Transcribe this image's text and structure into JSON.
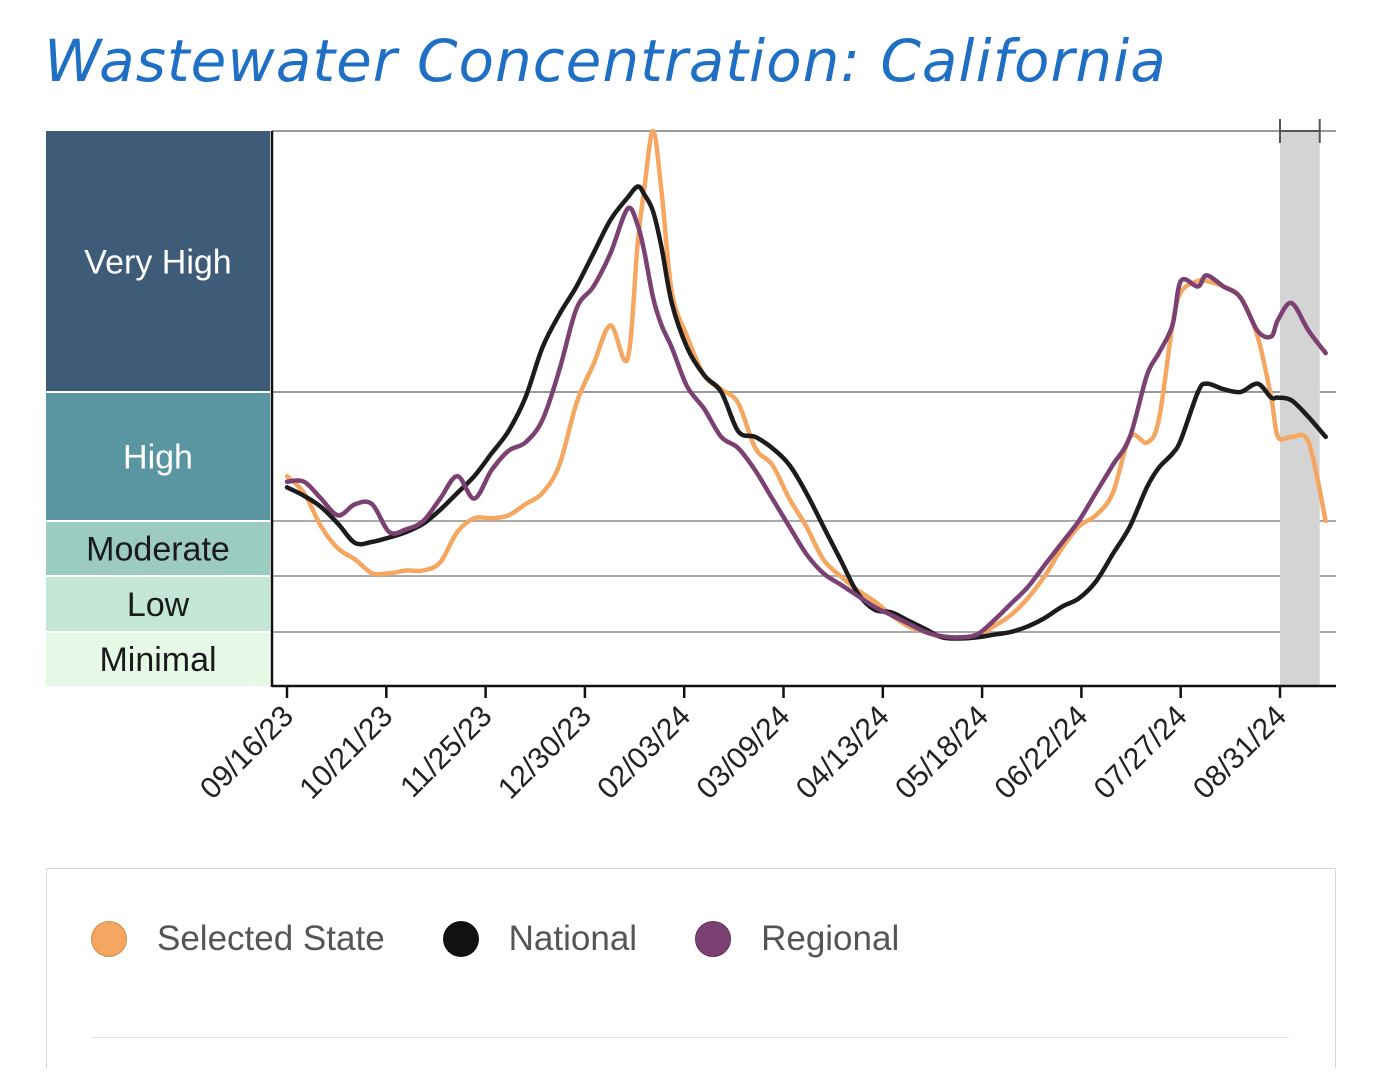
{
  "title": "Wastewater Concentration: California",
  "chart_data": {
    "type": "line",
    "title": "Wastewater Concentration: California",
    "xlabel": "",
    "ylabel": "",
    "ylim": [
      0,
      10
    ],
    "y_unit": "level index (0 = bottom of Minimal, 10 = top of Very High)",
    "x_ticks": [
      "09/16/23",
      "10/21/23",
      "11/25/23",
      "12/30/23",
      "02/03/24",
      "03/09/24",
      "04/13/24",
      "05/18/24",
      "06/22/24",
      "07/27/24",
      "08/31/24"
    ],
    "x_range_weeks": [
      0,
      52.4
    ],
    "levels": [
      {
        "name": "Very High",
        "from": 5.3,
        "to": 10,
        "color": "#3e5b78",
        "text_color": "#ffffff"
      },
      {
        "name": "High",
        "from": 3.0,
        "to": 5.3,
        "color": "#5a95a2",
        "text_color": "#ffffff"
      },
      {
        "name": "Moderate",
        "from": 2.0,
        "to": 3.0,
        "color": "#9ccbc2",
        "text_color": "#1a1a1a"
      },
      {
        "name": "Low",
        "from": 1.0,
        "to": 2.0,
        "color": "#c3e6d6",
        "text_color": "#1a1a1a"
      },
      {
        "name": "Minimal",
        "from": 0,
        "to": 1.0,
        "color": "#e6f8e6",
        "text_color": "#1a1a1a"
      }
    ],
    "provisional_range_weeks": [
      50,
      52
    ],
    "series": [
      {
        "name": "Selected State",
        "color": "#f5a761",
        "points": [
          [
            0,
            3.8
          ],
          [
            1,
            3.5
          ],
          [
            2,
            2.9
          ],
          [
            3,
            2.5
          ],
          [
            4,
            2.3
          ],
          [
            5,
            2.05
          ],
          [
            6,
            2.05
          ],
          [
            7,
            2.1
          ],
          [
            8,
            2.1
          ],
          [
            9,
            2.25
          ],
          [
            10,
            2.8
          ],
          [
            11,
            3.05
          ],
          [
            12,
            3.05
          ],
          [
            13,
            3.1
          ],
          [
            14,
            3.3
          ],
          [
            15,
            3.5
          ],
          [
            16,
            4.0
          ],
          [
            17,
            5.1
          ],
          [
            18,
            5.8
          ],
          [
            19,
            6.5
          ],
          [
            20,
            5.9
          ],
          [
            20.6,
            8.0
          ],
          [
            21,
            9.0
          ],
          [
            21.5,
            10.0
          ],
          [
            22,
            8.9
          ],
          [
            22.6,
            7.1
          ],
          [
            23.5,
            6.3
          ],
          [
            24.5,
            5.6
          ],
          [
            25.5,
            5.35
          ],
          [
            26.5,
            5.1
          ],
          [
            27.5,
            4.3
          ],
          [
            28.5,
            4.0
          ],
          [
            29.5,
            3.4
          ],
          [
            30.5,
            2.9
          ],
          [
            31.5,
            2.3
          ],
          [
            32.5,
            2.0
          ],
          [
            33.5,
            1.75
          ],
          [
            34.5,
            1.55
          ],
          [
            35.5,
            1.3
          ],
          [
            36.5,
            1.1
          ],
          [
            37.5,
            1.0
          ],
          [
            38.5,
            0.9
          ],
          [
            39.5,
            0.9
          ],
          [
            40.5,
            0.92
          ],
          [
            41.5,
            1.1
          ],
          [
            42.5,
            1.3
          ],
          [
            43.5,
            1.6
          ],
          [
            44.5,
            2.0
          ],
          [
            45.5,
            2.5
          ],
          [
            46.5,
            2.9
          ],
          [
            47.5,
            3.1
          ],
          [
            48.5,
            3.5
          ],
          [
            49.5,
            4.5
          ],
          [
            50.5,
            4.4
          ],
          [
            51.2,
            4.8
          ],
          [
            52,
            6.5
          ],
          [
            52.5,
            7.1
          ],
          [
            53.5,
            7.3
          ],
          [
            54,
            7.3
          ],
          [
            55,
            7.2
          ],
          [
            56,
            7.0
          ],
          [
            57,
            6.3
          ],
          [
            57.8,
            5.2
          ],
          [
            58.2,
            4.5
          ],
          [
            59,
            4.5
          ],
          [
            60,
            4.4
          ],
          [
            61,
            3.0
          ]
        ]
      },
      {
        "name": "National",
        "color": "#1c1c1c",
        "points": [
          [
            0,
            3.6
          ],
          [
            1,
            3.45
          ],
          [
            2,
            3.25
          ],
          [
            3,
            2.95
          ],
          [
            4,
            2.6
          ],
          [
            5,
            2.62
          ],
          [
            6,
            2.7
          ],
          [
            7,
            2.8
          ],
          [
            8,
            2.95
          ],
          [
            9,
            3.2
          ],
          [
            10,
            3.5
          ],
          [
            11,
            3.8
          ],
          [
            12,
            4.2
          ],
          [
            13,
            4.6
          ],
          [
            14,
            5.2
          ],
          [
            15,
            6.1
          ],
          [
            16,
            6.7
          ],
          [
            17,
            7.2
          ],
          [
            18,
            7.8
          ],
          [
            19,
            8.4
          ],
          [
            20,
            8.8
          ],
          [
            20.6,
            9.0
          ],
          [
            21,
            8.85
          ],
          [
            21.5,
            8.55
          ],
          [
            22,
            7.9
          ],
          [
            22.6,
            6.9
          ],
          [
            23.5,
            6.1
          ],
          [
            24.5,
            5.6
          ],
          [
            25.5,
            5.3
          ],
          [
            26.5,
            4.6
          ],
          [
            27.5,
            4.5
          ],
          [
            28.5,
            4.3
          ],
          [
            29.5,
            4.0
          ],
          [
            30.5,
            3.5
          ],
          [
            31.5,
            2.9
          ],
          [
            32.5,
            2.3
          ],
          [
            33.5,
            1.7
          ],
          [
            34.5,
            1.4
          ],
          [
            35.5,
            1.35
          ],
          [
            36.5,
            1.2
          ],
          [
            37.5,
            1.05
          ],
          [
            38.5,
            0.9
          ],
          [
            39.5,
            0.88
          ],
          [
            40.5,
            0.9
          ],
          [
            41.5,
            0.95
          ],
          [
            42.5,
            1.0
          ],
          [
            43.5,
            1.1
          ],
          [
            44.5,
            1.25
          ],
          [
            45.5,
            1.45
          ],
          [
            46.5,
            1.6
          ],
          [
            47.5,
            1.9
          ],
          [
            48.5,
            2.4
          ],
          [
            49.5,
            2.9
          ],
          [
            50.5,
            3.6
          ],
          [
            51.2,
            3.95
          ],
          [
            52,
            4.2
          ],
          [
            52.5,
            4.45
          ],
          [
            53.5,
            5.3
          ],
          [
            54,
            5.45
          ],
          [
            55,
            5.35
          ],
          [
            56,
            5.3
          ],
          [
            57,
            5.45
          ],
          [
            57.8,
            5.2
          ],
          [
            58.2,
            5.2
          ],
          [
            59,
            5.15
          ],
          [
            60,
            4.85
          ],
          [
            61,
            4.5
          ]
        ]
      },
      {
        "name": "Regional",
        "color": "#7b4173",
        "points": [
          [
            0,
            3.7
          ],
          [
            1,
            3.7
          ],
          [
            2,
            3.4
          ],
          [
            3,
            3.1
          ],
          [
            4,
            3.3
          ],
          [
            5,
            3.3
          ],
          [
            6,
            2.8
          ],
          [
            7,
            2.85
          ],
          [
            8,
            3.0
          ],
          [
            9,
            3.4
          ],
          [
            10,
            3.8
          ],
          [
            11,
            3.4
          ],
          [
            12,
            3.9
          ],
          [
            13,
            4.25
          ],
          [
            14,
            4.4
          ],
          [
            15,
            4.8
          ],
          [
            16,
            5.7
          ],
          [
            17,
            6.8
          ],
          [
            18,
            7.2
          ],
          [
            19,
            7.8
          ],
          [
            20,
            8.6
          ],
          [
            20.6,
            8.3
          ],
          [
            21,
            7.8
          ],
          [
            21.5,
            7.0
          ],
          [
            22,
            6.5
          ],
          [
            22.6,
            6.1
          ],
          [
            23.5,
            5.4
          ],
          [
            24.5,
            5.0
          ],
          [
            25.5,
            4.5
          ],
          [
            26.5,
            4.3
          ],
          [
            27.5,
            3.9
          ],
          [
            28.5,
            3.4
          ],
          [
            29.5,
            2.9
          ],
          [
            30.5,
            2.4
          ],
          [
            31.5,
            2.05
          ],
          [
            32.5,
            1.85
          ],
          [
            33.5,
            1.65
          ],
          [
            34.5,
            1.45
          ],
          [
            35.5,
            1.3
          ],
          [
            36.5,
            1.15
          ],
          [
            37.5,
            1.0
          ],
          [
            38.5,
            0.92
          ],
          [
            39.5,
            0.9
          ],
          [
            40.5,
            0.95
          ],
          [
            41.5,
            1.2
          ],
          [
            42.5,
            1.5
          ],
          [
            43.5,
            1.8
          ],
          [
            44.5,
            2.2
          ],
          [
            45.5,
            2.6
          ],
          [
            46.5,
            3.0
          ],
          [
            47.5,
            3.5
          ],
          [
            48.5,
            4.0
          ],
          [
            49.5,
            4.5
          ],
          [
            50.5,
            5.6
          ],
          [
            51.2,
            6.0
          ],
          [
            52,
            6.5
          ],
          [
            52.5,
            7.3
          ],
          [
            53.5,
            7.2
          ],
          [
            54,
            7.4
          ],
          [
            55,
            7.2
          ],
          [
            56,
            7.0
          ],
          [
            57,
            6.4
          ],
          [
            57.8,
            6.3
          ],
          [
            58.2,
            6.6
          ],
          [
            59,
            6.9
          ],
          [
            60,
            6.4
          ],
          [
            61,
            6.0
          ]
        ]
      }
    ],
    "legend": [
      "Selected State",
      "National",
      "Regional"
    ],
    "legend_position": "bottom"
  }
}
